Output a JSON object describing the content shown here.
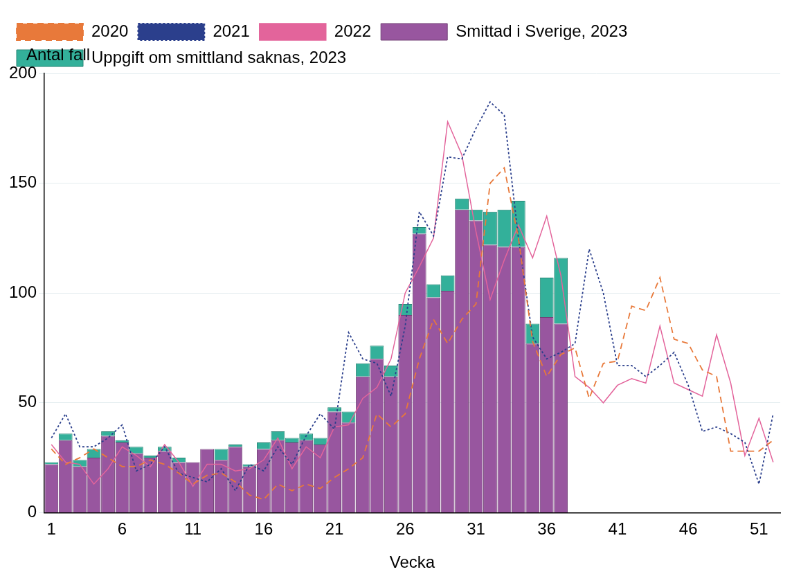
{
  "chart_data": {
    "type": "bar",
    "y_label": "Antal fall",
    "x_label": "Vecka",
    "categories": [
      1,
      null,
      null,
      null,
      null,
      6,
      null,
      null,
      null,
      null,
      11,
      null,
      null,
      null,
      null,
      16,
      null,
      null,
      null,
      null,
      21,
      null,
      null,
      null,
      null,
      26,
      null,
      null,
      null,
      null,
      31,
      null,
      null,
      null,
      null,
      36,
      null,
      null,
      null,
      null,
      41,
      null,
      null,
      null,
      null,
      46,
      null,
      null,
      null,
      null,
      51,
      null
    ],
    "stacked": true,
    "grid": true,
    "legend": "top",
    "ylim": [
      0,
      200
    ],
    "yticks": [
      0,
      50,
      100,
      150,
      200
    ],
    "series": [
      {
        "name": "Smittad i Sverige, 2023",
        "type": "bar",
        "color": "#98569f",
        "values": [
          22,
          33,
          21,
          25,
          35,
          32,
          27,
          25,
          28,
          23,
          23,
          29,
          24,
          30,
          21,
          29,
          33,
          32,
          33,
          31,
          46,
          41,
          62,
          70,
          62,
          90,
          127,
          98,
          101,
          138,
          133,
          122,
          121,
          121,
          77,
          89,
          86,
          null,
          null,
          null,
          null,
          null,
          null,
          null,
          null,
          null,
          null,
          null,
          null,
          null,
          null,
          null
        ]
      },
      {
        "name": "Uppgift om smittland saknas, 2023",
        "type": "bar",
        "color": "#33b09a",
        "values": [
          1,
          3,
          3,
          4,
          2,
          1,
          3,
          1,
          2,
          2,
          0,
          0,
          5,
          1,
          1,
          3,
          4,
          2,
          3,
          3,
          2,
          5,
          6,
          6,
          5,
          5,
          3,
          6,
          7,
          5,
          5,
          15,
          17,
          21,
          9,
          18,
          30,
          null,
          null,
          null,
          null,
          null,
          null,
          null,
          null,
          null,
          null,
          null,
          null,
          null,
          null,
          null
        ]
      },
      {
        "name": "2020",
        "type": "line",
        "color": "#e8793a",
        "line_style": "dashed",
        "values": [
          29,
          22,
          25,
          29,
          25,
          21,
          21,
          24,
          22,
          18,
          13,
          17,
          18,
          14,
          8,
          6,
          13,
          10,
          13,
          11,
          16,
          20,
          25,
          45,
          39,
          45,
          70,
          88,
          77,
          88,
          95,
          150,
          157,
          125,
          78,
          62,
          72,
          75,
          52,
          68,
          69,
          94,
          92,
          107,
          79,
          77,
          65,
          62,
          28,
          28,
          28,
          33
        ]
      },
      {
        "name": "2021",
        "type": "line",
        "color": "#2b3f8c",
        "line_style": "dotted",
        "values": [
          34,
          45,
          30,
          30,
          34,
          40,
          19,
          22,
          30,
          18,
          16,
          14,
          20,
          10,
          22,
          19,
          30,
          22,
          35,
          45,
          38,
          82,
          70,
          68,
          53,
          85,
          137,
          126,
          162,
          161,
          175,
          187,
          181,
          125,
          80,
          70,
          73,
          77,
          120,
          100,
          67,
          67,
          62,
          67,
          73,
          58,
          37,
          39,
          36,
          32,
          13,
          45
        ]
      },
      {
        "name": "2022",
        "type": "line",
        "color": "#e3649b",
        "line_style": "solid",
        "values": [
          31,
          23,
          22,
          13,
          20,
          30,
          26,
          21,
          31,
          23,
          12,
          22,
          22,
          19,
          20,
          24,
          34,
          20,
          30,
          25,
          39,
          40,
          52,
          57,
          70,
          100,
          112,
          125,
          178,
          163,
          128,
          97,
          115,
          131,
          116,
          135,
          108,
          62,
          57,
          50,
          58,
          61,
          59,
          85,
          59,
          56,
          53,
          81,
          59,
          26,
          43,
          23
        ]
      }
    ]
  }
}
